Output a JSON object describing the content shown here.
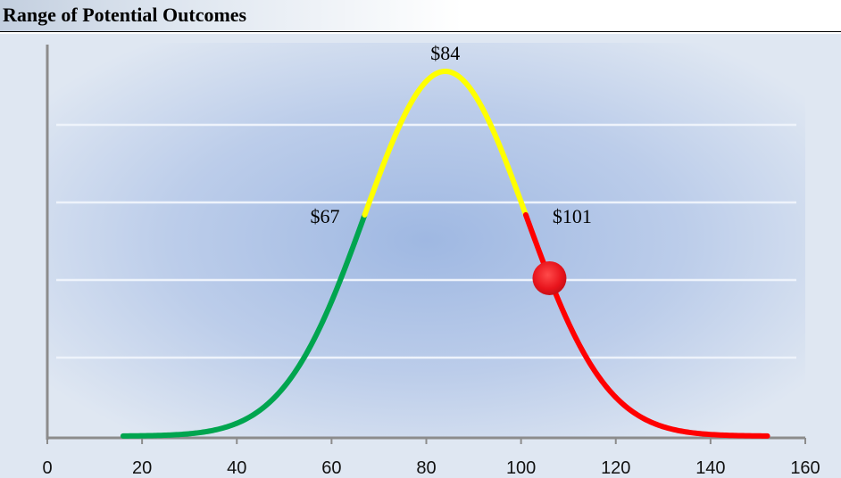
{
  "header": {
    "title": "Range of Potential Outcomes"
  },
  "chart_data": {
    "type": "line",
    "title": "Range of Potential Outcomes",
    "distribution": "normal",
    "mean": 84,
    "std_dev": 17,
    "x_range": [
      16,
      152
    ],
    "xlim": [
      0,
      160
    ],
    "x_ticks": [
      0,
      20,
      40,
      60,
      80,
      100,
      120,
      140,
      160
    ],
    "grid": true,
    "segments": [
      {
        "from": 16,
        "to": 67,
        "color": "#00a54f"
      },
      {
        "from": 67,
        "to": 101,
        "color": "#ffff00"
      },
      {
        "from": 101,
        "to": 152,
        "color": "#ff0000"
      }
    ],
    "annotations": [
      {
        "text": "$67",
        "x": 67
      },
      {
        "text": "$84",
        "x": 84
      },
      {
        "text": "$101",
        "x": 101
      }
    ],
    "marker": {
      "x": 106,
      "color": "#e8141c"
    }
  }
}
